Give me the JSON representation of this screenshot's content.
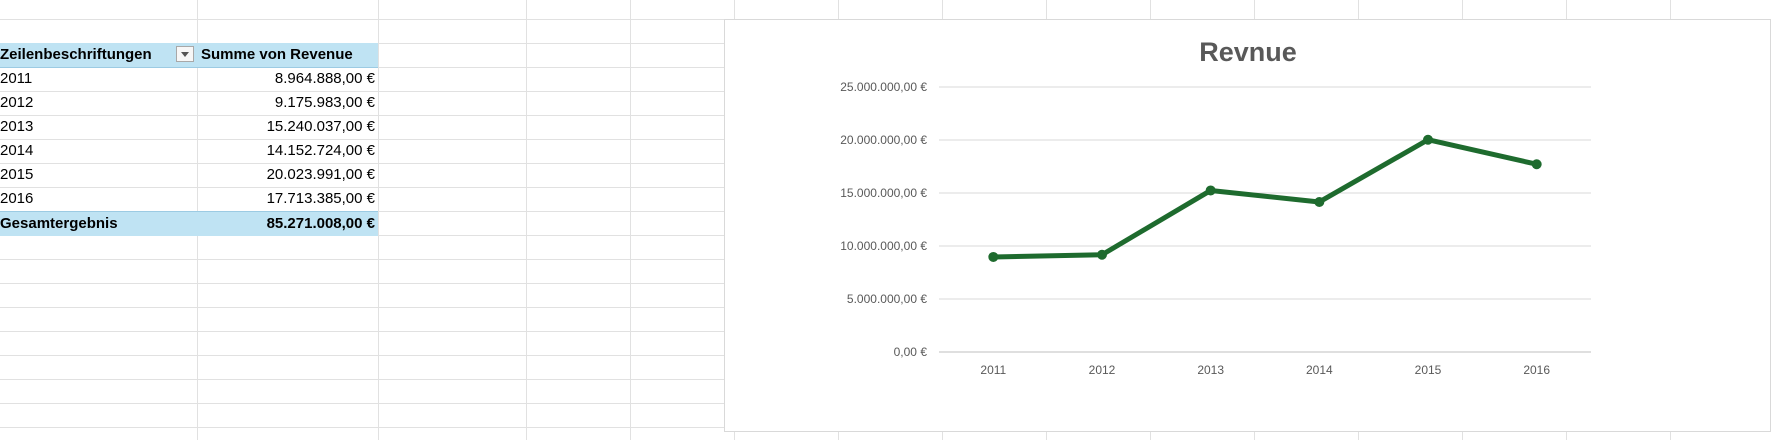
{
  "pivot": {
    "header": {
      "row_label": "Zeilenbeschriftungen",
      "value_label": "Summe von Revenue"
    },
    "rows": [
      {
        "label": "2011",
        "value": "8.964.888,00 €"
      },
      {
        "label": "2012",
        "value": "9.175.983,00 €"
      },
      {
        "label": "2013",
        "value": "15.240.037,00 €"
      },
      {
        "label": "2014",
        "value": "14.152.724,00 €"
      },
      {
        "label": "2015",
        "value": "20.023.991,00 €"
      },
      {
        "label": "2016",
        "value": "17.713.385,00 €"
      }
    ],
    "total": {
      "label": "Gesamtergebnis",
      "value": "85.271.008,00 €"
    }
  },
  "chart_data": {
    "type": "line",
    "title": "Revnue",
    "xlabel": "",
    "ylabel": "",
    "categories": [
      "2011",
      "2012",
      "2013",
      "2014",
      "2015",
      "2016"
    ],
    "series": [
      {
        "values": [
          8964888,
          9175983,
          15240037,
          14152724,
          20023991,
          17713385
        ],
        "color": "#1e6b2e"
      }
    ],
    "ylim": [
      0,
      25000000
    ],
    "yticks": [
      {
        "value": 0,
        "label": "0,00 €"
      },
      {
        "value": 5000000,
        "label": "5.000.000,00 €"
      },
      {
        "value": 10000000,
        "label": "10.000.000,00 €"
      },
      {
        "value": 15000000,
        "label": "15.000.000,00 €"
      },
      {
        "value": 20000000,
        "label": "20.000.000,00 €"
      },
      {
        "value": 25000000,
        "label": "25.000.000,00 €"
      }
    ],
    "grid": true,
    "legend": "none"
  },
  "colors": {
    "pivot_header_bg": "#bfe3f3",
    "gridline": "#e1e1e1",
    "line": "#1e6b2e"
  }
}
